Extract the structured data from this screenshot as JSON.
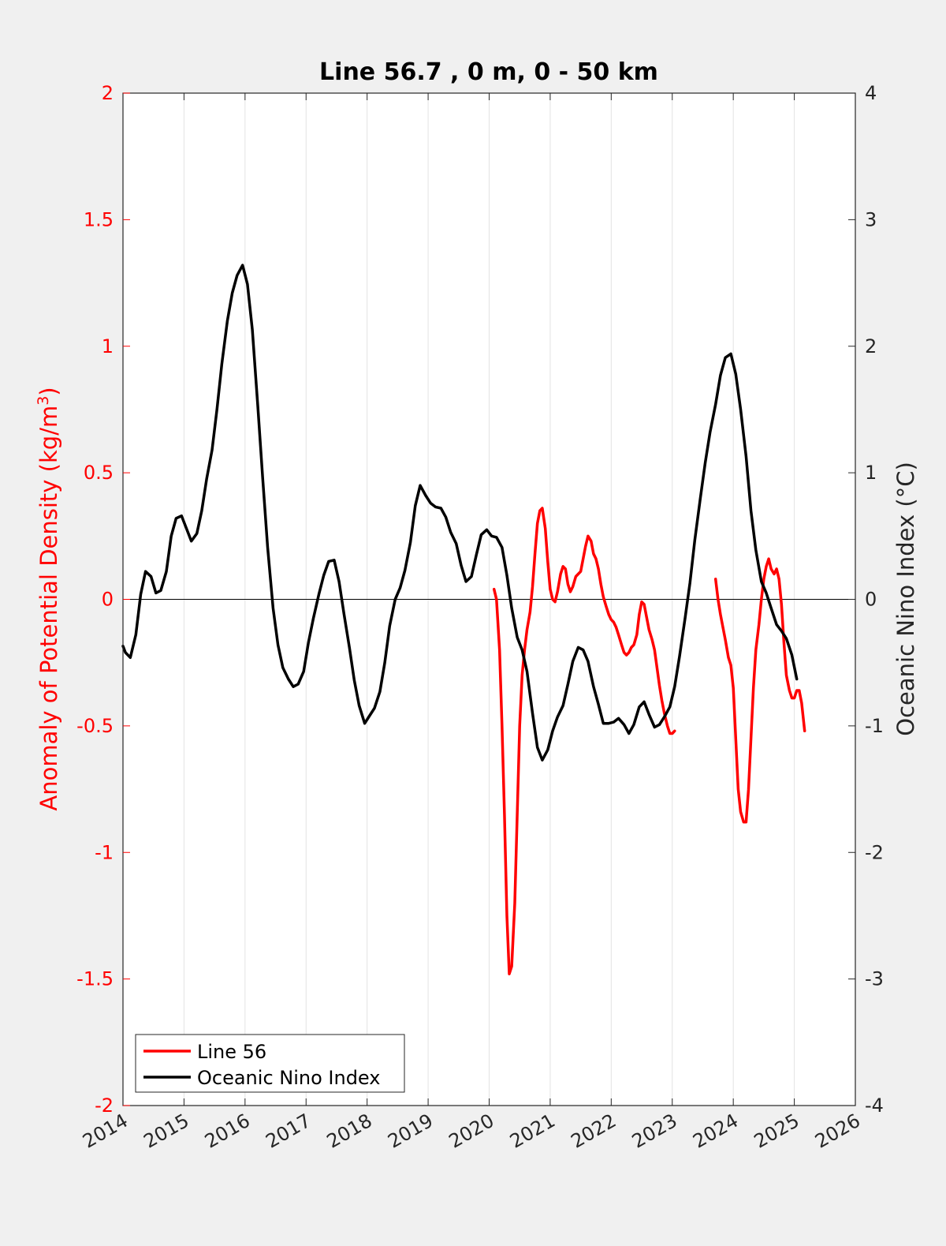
{
  "chart_data": {
    "type": "line",
    "title": "Line 56.7 , 0 m, 0 - 50 km",
    "xlabel": "",
    "xlim": [
      2014,
      2026
    ],
    "xticks": [
      "2014",
      "2015",
      "2016",
      "2017",
      "2018",
      "2019",
      "2020",
      "2021",
      "2022",
      "2023",
      "2024",
      "2025",
      "2026"
    ],
    "ylabel_left": "Anomaly of Potential Density (kg/m",
    "ylabel_left_sup": "3",
    "ylabel_left_close": ")",
    "ylim_left": [
      -2,
      2
    ],
    "yticks_left": [
      "-2",
      "-1.5",
      "-1",
      "-0.5",
      "0",
      "0.5",
      "1",
      "1.5",
      "2"
    ],
    "ylabel_right": "Oceanic Nino Index (°C)",
    "ylim_right": [
      -4,
      4
    ],
    "yticks_right": [
      "-4",
      "-3",
      "-2",
      "-1",
      "0",
      "1",
      "2",
      "3",
      "4"
    ],
    "grid": "vertical",
    "legend_position": "bottom-left",
    "colors": {
      "line56": "#ff0000",
      "oni": "#000000",
      "axis_left": "#ff0000",
      "axis_right": "#262626"
    },
    "series": [
      {
        "name": "Line 56",
        "axis": "left",
        "segments": [
          [
            [
              2020.08,
              0.04
            ],
            [
              2020.12,
              0.0
            ],
            [
              2020.17,
              -0.2
            ],
            [
              2020.21,
              -0.5
            ],
            [
              2020.25,
              -0.85
            ],
            [
              2020.29,
              -1.25
            ],
            [
              2020.33,
              -1.48
            ],
            [
              2020.37,
              -1.45
            ],
            [
              2020.42,
              -1.2
            ],
            [
              2020.46,
              -0.85
            ],
            [
              2020.5,
              -0.5
            ],
            [
              2020.54,
              -0.3
            ],
            [
              2020.58,
              -0.2
            ],
            [
              2020.62,
              -0.12
            ],
            [
              2020.67,
              -0.05
            ],
            [
              2020.71,
              0.05
            ],
            [
              2020.75,
              0.18
            ],
            [
              2020.79,
              0.3
            ],
            [
              2020.83,
              0.35
            ],
            [
              2020.87,
              0.36
            ],
            [
              2020.92,
              0.28
            ],
            [
              2020.96,
              0.15
            ],
            [
              2021.0,
              0.04
            ],
            [
              2021.04,
              0.0
            ],
            [
              2021.08,
              -0.01
            ],
            [
              2021.12,
              0.03
            ],
            [
              2021.17,
              0.1
            ],
            [
              2021.21,
              0.13
            ],
            [
              2021.25,
              0.12
            ],
            [
              2021.29,
              0.06
            ],
            [
              2021.33,
              0.03
            ],
            [
              2021.37,
              0.05
            ],
            [
              2021.42,
              0.09
            ],
            [
              2021.46,
              0.1
            ],
            [
              2021.5,
              0.11
            ],
            [
              2021.54,
              0.16
            ],
            [
              2021.58,
              0.21
            ],
            [
              2021.62,
              0.25
            ],
            [
              2021.67,
              0.23
            ],
            [
              2021.71,
              0.18
            ],
            [
              2021.75,
              0.16
            ],
            [
              2021.79,
              0.12
            ],
            [
              2021.83,
              0.06
            ],
            [
              2021.87,
              0.01
            ],
            [
              2021.92,
              -0.03
            ],
            [
              2021.96,
              -0.06
            ],
            [
              2022.0,
              -0.08
            ],
            [
              2022.04,
              -0.09
            ],
            [
              2022.08,
              -0.11
            ],
            [
              2022.12,
              -0.14
            ],
            [
              2022.17,
              -0.18
            ],
            [
              2022.21,
              -0.21
            ],
            [
              2022.25,
              -0.22
            ],
            [
              2022.29,
              -0.21
            ],
            [
              2022.33,
              -0.19
            ],
            [
              2022.37,
              -0.18
            ],
            [
              2022.42,
              -0.14
            ],
            [
              2022.46,
              -0.06
            ],
            [
              2022.5,
              -0.01
            ],
            [
              2022.54,
              -0.02
            ],
            [
              2022.58,
              -0.07
            ],
            [
              2022.62,
              -0.12
            ],
            [
              2022.67,
              -0.16
            ],
            [
              2022.71,
              -0.2
            ],
            [
              2022.75,
              -0.27
            ],
            [
              2022.79,
              -0.34
            ],
            [
              2022.83,
              -0.4
            ],
            [
              2022.87,
              -0.45
            ],
            [
              2022.92,
              -0.5
            ],
            [
              2022.96,
              -0.53
            ],
            [
              2023.0,
              -0.53
            ],
            [
              2023.04,
              -0.52
            ]
          ],
          [
            [
              2023.71,
              0.08
            ],
            [
              2023.75,
              0.0
            ],
            [
              2023.79,
              -0.06
            ],
            [
              2023.83,
              -0.11
            ],
            [
              2023.87,
              -0.16
            ],
            [
              2023.92,
              -0.23
            ],
            [
              2023.96,
              -0.26
            ],
            [
              2024.0,
              -0.35
            ],
            [
              2024.04,
              -0.55
            ],
            [
              2024.08,
              -0.75
            ],
            [
              2024.12,
              -0.84
            ],
            [
              2024.17,
              -0.88
            ],
            [
              2024.21,
              -0.88
            ],
            [
              2024.25,
              -0.75
            ],
            [
              2024.29,
              -0.55
            ],
            [
              2024.33,
              -0.35
            ],
            [
              2024.37,
              -0.2
            ],
            [
              2024.42,
              -0.1
            ],
            [
              2024.46,
              0.0
            ],
            [
              2024.5,
              0.08
            ],
            [
              2024.54,
              0.13
            ],
            [
              2024.58,
              0.16
            ],
            [
              2024.62,
              0.12
            ],
            [
              2024.67,
              0.1
            ],
            [
              2024.71,
              0.12
            ],
            [
              2024.75,
              0.08
            ],
            [
              2024.79,
              -0.02
            ],
            [
              2024.83,
              -0.17
            ],
            [
              2024.87,
              -0.3
            ],
            [
              2024.92,
              -0.36
            ],
            [
              2024.96,
              -0.39
            ],
            [
              2025.0,
              -0.39
            ],
            [
              2025.04,
              -0.36
            ],
            [
              2025.08,
              -0.36
            ],
            [
              2025.12,
              -0.41
            ],
            [
              2025.17,
              -0.52
            ]
          ]
        ]
      },
      {
        "name": "Oceanic Nino Index",
        "axis": "right",
        "segments": [
          [
            [
              2014.0,
              -0.37
            ],
            [
              2014.04,
              -0.42
            ],
            [
              2014.12,
              -0.46
            ],
            [
              2014.21,
              -0.28
            ],
            [
              2014.29,
              0.04
            ],
            [
              2014.37,
              0.22
            ],
            [
              2014.46,
              0.18
            ],
            [
              2014.54,
              0.05
            ],
            [
              2014.62,
              0.07
            ],
            [
              2014.71,
              0.22
            ],
            [
              2014.79,
              0.5
            ],
            [
              2014.87,
              0.64
            ],
            [
              2014.96,
              0.66
            ],
            [
              2015.04,
              0.56
            ],
            [
              2015.12,
              0.46
            ],
            [
              2015.21,
              0.52
            ],
            [
              2015.29,
              0.7
            ],
            [
              2015.37,
              0.95
            ],
            [
              2015.46,
              1.18
            ],
            [
              2015.54,
              1.5
            ],
            [
              2015.62,
              1.86
            ],
            [
              2015.71,
              2.2
            ],
            [
              2015.79,
              2.42
            ],
            [
              2015.87,
              2.56
            ],
            [
              2015.96,
              2.64
            ],
            [
              2016.04,
              2.49
            ],
            [
              2016.12,
              2.13
            ],
            [
              2016.21,
              1.52
            ],
            [
              2016.29,
              0.95
            ],
            [
              2016.37,
              0.41
            ],
            [
              2016.46,
              -0.07
            ],
            [
              2016.54,
              -0.36
            ],
            [
              2016.62,
              -0.54
            ],
            [
              2016.71,
              -0.63
            ],
            [
              2016.79,
              -0.69
            ],
            [
              2016.87,
              -0.67
            ],
            [
              2016.96,
              -0.57
            ],
            [
              2017.04,
              -0.34
            ],
            [
              2017.12,
              -0.15
            ],
            [
              2017.21,
              0.04
            ],
            [
              2017.29,
              0.19
            ],
            [
              2017.37,
              0.3
            ],
            [
              2017.46,
              0.31
            ],
            [
              2017.54,
              0.14
            ],
            [
              2017.62,
              -0.11
            ],
            [
              2017.71,
              -0.38
            ],
            [
              2017.79,
              -0.64
            ],
            [
              2017.87,
              -0.84
            ],
            [
              2017.96,
              -0.98
            ],
            [
              2018.04,
              -0.92
            ],
            [
              2018.12,
              -0.86
            ],
            [
              2018.21,
              -0.73
            ],
            [
              2018.29,
              -0.5
            ],
            [
              2018.37,
              -0.21
            ],
            [
              2018.46,
              0.0
            ],
            [
              2018.54,
              0.09
            ],
            [
              2018.62,
              0.23
            ],
            [
              2018.71,
              0.45
            ],
            [
              2018.79,
              0.74
            ],
            [
              2018.87,
              0.9
            ],
            [
              2018.96,
              0.82
            ],
            [
              2019.04,
              0.76
            ],
            [
              2019.12,
              0.73
            ],
            [
              2019.21,
              0.72
            ],
            [
              2019.29,
              0.65
            ],
            [
              2019.37,
              0.53
            ],
            [
              2019.46,
              0.44
            ],
            [
              2019.54,
              0.27
            ],
            [
              2019.62,
              0.14
            ],
            [
              2019.71,
              0.18
            ],
            [
              2019.79,
              0.35
            ],
            [
              2019.87,
              0.51
            ],
            [
              2019.96,
              0.55
            ],
            [
              2020.04,
              0.5
            ],
            [
              2020.12,
              0.49
            ],
            [
              2020.21,
              0.41
            ],
            [
              2020.29,
              0.19
            ],
            [
              2020.37,
              -0.07
            ],
            [
              2020.46,
              -0.3
            ],
            [
              2020.54,
              -0.4
            ],
            [
              2020.62,
              -0.57
            ],
            [
              2020.71,
              -0.9
            ],
            [
              2020.79,
              -1.17
            ],
            [
              2020.87,
              -1.27
            ],
            [
              2020.96,
              -1.19
            ],
            [
              2021.04,
              -1.04
            ],
            [
              2021.12,
              -0.93
            ],
            [
              2021.21,
              -0.84
            ],
            [
              2021.29,
              -0.67
            ],
            [
              2021.37,
              -0.49
            ],
            [
              2021.46,
              -0.38
            ],
            [
              2021.54,
              -0.4
            ],
            [
              2021.62,
              -0.49
            ],
            [
              2021.71,
              -0.69
            ],
            [
              2021.79,
              -0.83
            ],
            [
              2021.87,
              -0.98
            ],
            [
              2021.96,
              -0.98
            ],
            [
              2022.04,
              -0.97
            ],
            [
              2022.12,
              -0.94
            ],
            [
              2022.21,
              -0.99
            ],
            [
              2022.29,
              -1.06
            ],
            [
              2022.37,
              -0.99
            ],
            [
              2022.46,
              -0.85
            ],
            [
              2022.54,
              -0.81
            ],
            [
              2022.62,
              -0.91
            ],
            [
              2022.71,
              -1.01
            ],
            [
              2022.79,
              -0.99
            ],
            [
              2022.87,
              -0.93
            ],
            [
              2022.96,
              -0.85
            ],
            [
              2023.04,
              -0.69
            ],
            [
              2023.12,
              -0.45
            ],
            [
              2023.21,
              -0.15
            ],
            [
              2023.29,
              0.13
            ],
            [
              2023.37,
              0.47
            ],
            [
              2023.46,
              0.8
            ],
            [
              2023.54,
              1.08
            ],
            [
              2023.62,
              1.32
            ],
            [
              2023.71,
              1.54
            ],
            [
              2023.79,
              1.77
            ],
            [
              2023.87,
              1.91
            ],
            [
              2023.96,
              1.94
            ],
            [
              2024.04,
              1.78
            ],
            [
              2024.12,
              1.5
            ],
            [
              2024.21,
              1.13
            ],
            [
              2024.29,
              0.7
            ],
            [
              2024.37,
              0.39
            ],
            [
              2024.46,
              0.14
            ],
            [
              2024.54,
              0.05
            ],
            [
              2024.62,
              -0.07
            ],
            [
              2024.71,
              -0.2
            ],
            [
              2024.79,
              -0.25
            ],
            [
              2024.87,
              -0.31
            ],
            [
              2024.96,
              -0.44
            ],
            [
              2025.04,
              -0.63
            ]
          ]
        ]
      }
    ]
  }
}
